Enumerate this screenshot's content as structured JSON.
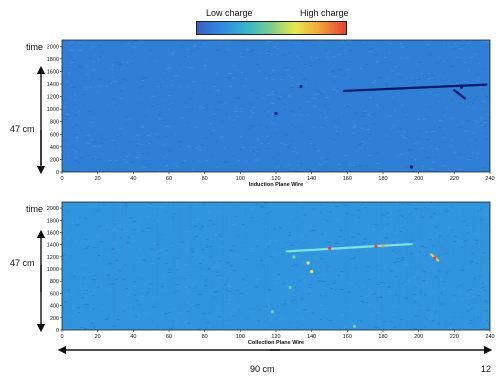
{
  "legend": {
    "low": "Low charge",
    "high": "High charge"
  },
  "labels": {
    "time": "time",
    "vertical_length": "47 cm",
    "horizontal_length": "90 cm",
    "corner_number": "12"
  },
  "chart_data": [
    {
      "type": "heatmap",
      "xlabel": "Induction Plane Wire",
      "ylabel": "time",
      "xlim": [
        0,
        240
      ],
      "ylim": [
        0,
        2100
      ],
      "xticks": [
        0,
        20,
        40,
        60,
        80,
        100,
        120,
        140,
        160,
        180,
        200,
        220,
        240
      ],
      "yticks": [
        0,
        200,
        400,
        600,
        800,
        1000,
        1200,
        1400,
        1600,
        1800,
        2000
      ],
      "background_color": "#2f7fd6",
      "tracks": [
        {
          "x": [
            158,
            238
          ],
          "y": [
            1290,
            1390
          ],
          "color": "#0a1a66"
        },
        {
          "x": [
            220,
            226
          ],
          "y": [
            1300,
            1170
          ],
          "color": "#0a1a66"
        }
      ],
      "hits": [
        {
          "x": 134,
          "y": 1360,
          "color": "#0a1a66"
        },
        {
          "x": 120,
          "y": 930,
          "color": "#0a1a66"
        },
        {
          "x": 196,
          "y": 80,
          "color": "#0a1a66"
        },
        {
          "x": 224,
          "y": 1350,
          "color": "#0a1a66"
        }
      ]
    },
    {
      "type": "heatmap",
      "xlabel": "Collection Plane Wire",
      "ylabel": "time",
      "xlim": [
        0,
        240
      ],
      "ylim": [
        0,
        2100
      ],
      "xticks": [
        0,
        20,
        40,
        60,
        80,
        100,
        120,
        140,
        160,
        180,
        200,
        220,
        240
      ],
      "yticks": [
        0,
        200,
        400,
        600,
        800,
        1000,
        1200,
        1400,
        1600,
        1800,
        2000
      ],
      "background_color": "#2f95de",
      "tracks": [
        {
          "x": [
            126,
            196
          ],
          "y": [
            1290,
            1410
          ],
          "color": "#7fe3d6"
        },
        {
          "x": [
            207,
            211
          ],
          "y": [
            1240,
            1140
          ],
          "color": "#e8c84a"
        }
      ],
      "hits": [
        {
          "x": 150,
          "y": 1340,
          "color": "#e8412e"
        },
        {
          "x": 176,
          "y": 1370,
          "color": "#e8412e"
        },
        {
          "x": 180,
          "y": 1380,
          "color": "#f2a43a"
        },
        {
          "x": 138,
          "y": 1100,
          "color": "#e8e84a"
        },
        {
          "x": 140,
          "y": 960,
          "color": "#e8e84a"
        },
        {
          "x": 130,
          "y": 1200,
          "color": "#7ccf8a"
        },
        {
          "x": 128,
          "y": 700,
          "color": "#7ccf8a"
        },
        {
          "x": 164,
          "y": 60,
          "color": "#7ccf8a"
        },
        {
          "x": 118,
          "y": 300,
          "color": "#7ccf8a"
        },
        {
          "x": 209,
          "y": 1180,
          "color": "#e8412e"
        }
      ]
    }
  ]
}
